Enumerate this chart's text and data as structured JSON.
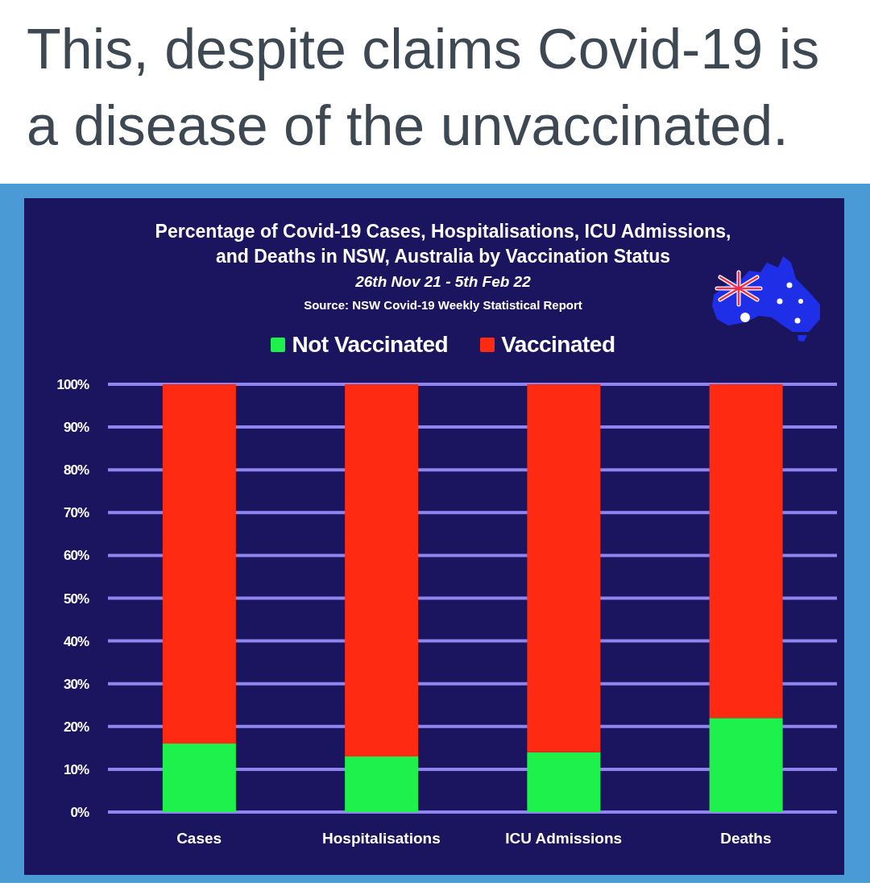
{
  "chart_data": {
    "type": "bar",
    "title": "This, despite claims Covid-19 is a disease of the unvaccinated.",
    "subtitle": "Percentage of Covid-19 Cases, Hospitalisations, ICU Admissions, and Deaths in NSW, Australia by Vaccination Status",
    "annotations": [
      "26th Nov 21 - 5th Feb 22",
      "Source: NSW Covid-19 Weekly Statistical Report"
    ],
    "categories": [
      "Cases",
      "Hospitalisations",
      "ICU Admissions",
      "Deaths"
    ],
    "series": [
      {
        "name": "Not Vaccinated",
        "color": "#1ef04c",
        "values": [
          16,
          13,
          14,
          22
        ]
      },
      {
        "name": "Vaccinated",
        "color": "#ff2a12",
        "values": [
          84,
          87,
          86,
          78
        ]
      }
    ],
    "stacked": true,
    "ylim": [
      0,
      100
    ],
    "yticks": [
      {
        "value": 0,
        "label": "0%"
      },
      {
        "value": 10,
        "label": "10%"
      },
      {
        "value": 20,
        "label": "20%"
      },
      {
        "value": 30,
        "label": "30%"
      },
      {
        "value": 40,
        "label": "40%"
      },
      {
        "value": 50,
        "label": "50%"
      },
      {
        "value": 60,
        "label": "60%"
      },
      {
        "value": 70,
        "label": "70%"
      },
      {
        "value": 80,
        "label": "80%"
      },
      {
        "value": 90,
        "label": "90%"
      },
      {
        "value": 100,
        "label": "100%"
      }
    ],
    "grid": "y",
    "legend": "top"
  }
}
